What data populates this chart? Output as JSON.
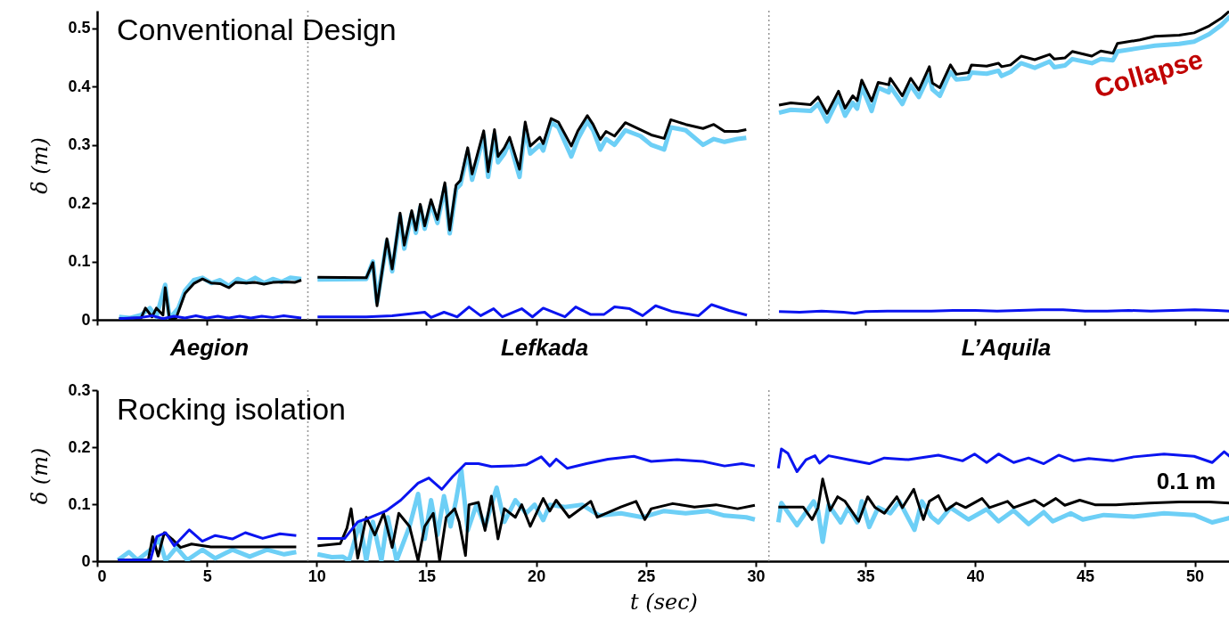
{
  "chart_data": [
    {
      "type": "line",
      "xlim": [
        0,
        51.6
      ],
      "ylim": [
        0,
        0.53
      ],
      "xticks": [
        0,
        5,
        10,
        15,
        20,
        25,
        30,
        35,
        40,
        45,
        50
      ],
      "yticks": [
        0,
        0.1,
        0.2,
        0.3,
        0.4,
        0.5
      ],
      "ylabel": "δ (m)",
      "tick_labels": "y",
      "line_style": "solid",
      "annotations": [
        "Conventional Design",
        "Aegion",
        "Lefkada",
        "L’Aquila",
        "Collapse"
      ],
      "ref_lines": [
        {
          "axis": "x",
          "value": 9.6,
          "color": "#999999",
          "line_style": "dotted"
        },
        {
          "axis": "x",
          "value": 30.6,
          "color": "#999999",
          "line_style": "dotted"
        }
      ],
      "series": [
        {
          "color": "#6dcff6",
          "x": [
            1,
            1.5,
            2,
            2.4,
            2.7,
            3.1,
            3.3,
            3.7,
            4.0,
            4.4,
            4.8,
            5.2,
            5.6,
            6.0,
            6.4,
            6.8,
            7.2,
            7.6,
            8,
            8.4,
            8.8,
            9.3,
            null,
            10.04,
            12.26,
            12.56,
            12.75,
            13.2,
            13.44,
            13.8,
            13.99,
            14.33,
            14.52,
            14.72,
            14.92,
            15.21,
            15.5,
            15.84,
            16.06,
            16.35,
            16.55,
            16.88,
            17.08,
            17.61,
            17.81,
            18.1,
            18.26,
            18.55,
            18.79,
            19.24,
            19.5,
            19.73,
            20.17,
            20.32,
            20.68,
            21.01,
            21.6,
            21.9,
            22.33,
            22.59,
            22.92,
            23.18,
            23.57,
            24.06,
            24.75,
            25.24,
            25.83,
            26.13,
            26.81,
            27.6,
            28.09,
            28.58,
            29.17,
            29.57,
            null,
            31.06,
            31.6,
            32.5,
            32.84,
            33.25,
            33.77,
            34.07,
            34.42,
            34.62,
            34.83,
            35.28,
            35.58,
            36.06,
            36.13,
            36.68,
            37.06,
            37.43,
            37.91,
            38.05,
            38.39,
            38.87,
            39.14,
            39.69,
            39.83,
            40.52,
            41.06,
            41.2,
            41.61,
            42.09,
            42.71,
            43.39,
            43.6,
            44.08,
            44.42,
            45.31,
            45.72,
            46.27,
            46.48,
            47.5,
            48.19,
            49.29,
            49.97,
            50.66,
            51.2,
            51.6
          ],
          "values": [
            0.005,
            0.003,
            0.008,
            0.02,
            0.005,
            0.06,
            0.002,
            0.02,
            0.05,
            0.068,
            0.072,
            0.063,
            0.068,
            0.058,
            0.07,
            0.064,
            0.072,
            0.063,
            0.07,
            0.065,
            0.072,
            0.07,
            null,
            0.069,
            0.07,
            0.1,
            0.03,
            0.135,
            0.083,
            0.178,
            0.122,
            0.182,
            0.149,
            0.193,
            0.156,
            0.2,
            0.166,
            0.228,
            0.148,
            0.224,
            0.232,
            0.288,
            0.24,
            0.316,
            0.245,
            0.318,
            0.27,
            0.285,
            0.305,
            0.245,
            0.33,
            0.285,
            0.3,
            0.29,
            0.338,
            0.33,
            0.28,
            0.31,
            0.34,
            0.325,
            0.292,
            0.31,
            0.3,
            0.325,
            0.315,
            0.3,
            0.292,
            0.33,
            0.325,
            0.3,
            0.31,
            0.305,
            0.31,
            0.312,
            null,
            0.355,
            0.36,
            0.358,
            0.37,
            0.34,
            0.38,
            0.35,
            0.372,
            0.362,
            0.4,
            0.358,
            0.398,
            0.39,
            0.4,
            0.37,
            0.402,
            0.382,
            0.42,
            0.395,
            0.384,
            0.425,
            0.412,
            0.414,
            0.424,
            0.422,
            0.427,
            0.418,
            0.425,
            0.44,
            0.432,
            0.443,
            0.433,
            0.436,
            0.447,
            0.44,
            0.447,
            0.445,
            0.46,
            0.466,
            0.47,
            0.473,
            0.477,
            0.49,
            0.505,
            0.52
          ]
        },
        {
          "color": "#000000",
          "x": [
            1,
            2,
            2.2,
            2.5,
            2.7,
            3.0,
            3.1,
            3.3,
            3.6,
            4.0,
            4.4,
            4.8,
            5.2,
            5.6,
            6.0,
            6.3,
            6.8,
            7.2,
            7.6,
            8.0,
            8.5,
            9.0,
            9.3,
            null,
            10.04,
            12.26,
            12.56,
            12.75,
            13.2,
            13.44,
            13.8,
            13.99,
            14.33,
            14.52,
            14.72,
            14.92,
            15.21,
            15.5,
            15.84,
            16.06,
            16.35,
            16.55,
            16.88,
            17.08,
            17.61,
            17.81,
            18.1,
            18.26,
            18.55,
            18.79,
            19.24,
            19.5,
            19.73,
            20.17,
            20.32,
            20.68,
            21.01,
            21.6,
            21.9,
            22.33,
            22.59,
            22.92,
            23.18,
            23.57,
            24.06,
            24.75,
            25.24,
            25.83,
            26.13,
            26.81,
            27.6,
            28.09,
            28.58,
            29.17,
            29.57,
            null,
            31.06,
            31.6,
            32.5,
            32.84,
            33.25,
            33.77,
            34.07,
            34.42,
            34.62,
            34.83,
            35.28,
            35.58,
            36.06,
            36.13,
            36.68,
            37.06,
            37.43,
            37.91,
            38.05,
            38.39,
            38.87,
            39.14,
            39.69,
            39.83,
            40.52,
            41.06,
            41.2,
            41.61,
            42.09,
            42.71,
            43.39,
            43.6,
            44.08,
            44.42,
            45.31,
            45.72,
            46.27,
            46.48,
            47.5,
            48.19,
            49.29,
            49.97,
            50.66,
            51.2,
            51.6
          ],
          "values": [
            0.002,
            0.003,
            0.02,
            0.005,
            0.02,
            0.008,
            0.055,
            0.0,
            0.003,
            0.045,
            0.062,
            0.07,
            0.063,
            0.062,
            0.055,
            0.064,
            0.063,
            0.064,
            0.061,
            0.064,
            0.065,
            0.064,
            0.068,
            null,
            0.073,
            0.072,
            0.098,
            0.024,
            0.139,
            0.087,
            0.183,
            0.128,
            0.187,
            0.154,
            0.198,
            0.161,
            0.206,
            0.172,
            0.235,
            0.154,
            0.231,
            0.239,
            0.295,
            0.25,
            0.324,
            0.254,
            0.326,
            0.28,
            0.295,
            0.313,
            0.258,
            0.339,
            0.298,
            0.313,
            0.302,
            0.345,
            0.339,
            0.298,
            0.324,
            0.35,
            0.335,
            0.309,
            0.323,
            0.315,
            0.338,
            0.326,
            0.317,
            0.311,
            0.343,
            0.335,
            0.328,
            0.335,
            0.323,
            0.323,
            0.326,
            null,
            0.368,
            0.372,
            0.369,
            0.382,
            0.354,
            0.392,
            0.363,
            0.384,
            0.376,
            0.411,
            0.375,
            0.407,
            0.403,
            0.414,
            0.384,
            0.414,
            0.394,
            0.434,
            0.406,
            0.398,
            0.437,
            0.421,
            0.424,
            0.437,
            0.435,
            0.44,
            0.434,
            0.437,
            0.452,
            0.446,
            0.455,
            0.447,
            0.449,
            0.46,
            0.452,
            0.461,
            0.457,
            0.474,
            0.48,
            0.486,
            0.488,
            0.492,
            0.504,
            0.517,
            0.53
          ]
        },
        {
          "color": "#0a14f0",
          "x": [
            1,
            2,
            2.5,
            3,
            3.5,
            4,
            4.5,
            5,
            5.5,
            6,
            6.5,
            7,
            7.5,
            8,
            8.5,
            9.3,
            null,
            10.04,
            12.26,
            13.44,
            14.92,
            15.21,
            15.8,
            16.4,
            16.94,
            17.47,
            18.06,
            18.46,
            19.34,
            19.83,
            20.32,
            21.31,
            21.8,
            22.49,
            23.08,
            23.57,
            24.26,
            24.85,
            25.44,
            26.22,
            27.4,
            27.99,
            28.78,
            29.6,
            null,
            31.06,
            32,
            33,
            34,
            34.5,
            35,
            36,
            37,
            38,
            39,
            40,
            41,
            42,
            43,
            44,
            45,
            46,
            47,
            48,
            49,
            50,
            51,
            51.6
          ],
          "values": [
            0.002,
            0.004,
            0.007,
            0.002,
            0.006,
            0.003,
            0.007,
            0.003,
            0.006,
            0.003,
            0.006,
            0.003,
            0.006,
            0.004,
            0.007,
            0.003,
            null,
            0.005,
            0.005,
            0.007,
            0.013,
            0.004,
            0.013,
            0.005,
            0.022,
            0.007,
            0.019,
            0.005,
            0.019,
            0.005,
            0.02,
            0.005,
            0.022,
            0.009,
            0.009,
            0.022,
            0.019,
            0.007,
            0.024,
            0.014,
            0.007,
            0.026,
            0.016,
            0.008,
            null,
            0.014,
            0.013,
            0.015,
            0.013,
            0.011,
            0.014,
            0.015,
            0.015,
            0.015,
            0.016,
            0.016,
            0.015,
            0.016,
            0.017,
            0.017,
            0.015,
            0.015,
            0.016,
            0.015,
            0.016,
            0.017,
            0.016,
            0.015
          ]
        }
      ]
    },
    {
      "type": "line",
      "xlim": [
        0,
        51.6
      ],
      "ylim": [
        0,
        0.3
      ],
      "xticks": [
        0,
        5,
        10,
        15,
        20,
        25,
        30,
        35,
        40,
        45,
        50
      ],
      "yticks": [
        0,
        0.1,
        0.2,
        0.3
      ],
      "xlabel": "t (sec)",
      "ylabel": "δ (m)",
      "line_style": "solid",
      "annotations": [
        "Rocking isolation",
        "0.1 m"
      ],
      "ref_lines": [
        {
          "axis": "x",
          "value": 9.6,
          "color": "#999999",
          "line_style": "dotted"
        },
        {
          "axis": "x",
          "value": 30.6,
          "color": "#999999",
          "line_style": "dotted"
        }
      ],
      "series": [
        {
          "color": "#6dcff6",
          "x": [
            0.95,
            1.45,
            1.84,
            2.43,
            2.82,
            3.12,
            3.61,
            4.1,
            4.79,
            5.38,
            6.16,
            6.95,
            7.74,
            8.52,
            9.07,
            null,
            10.04,
            10.69,
            11.18,
            11.47,
            11.97,
            12.26,
            12.56,
            12.95,
            13.24,
            13.64,
            14.23,
            14.62,
            14.92,
            15.21,
            15.5,
            15.8,
            16.1,
            16.35,
            16.59,
            16.88,
            17.28,
            17.67,
            18.2,
            18.55,
            19.05,
            19.54,
            19.93,
            20.32,
            20.62,
            21.31,
            22.09,
            22.88,
            23.86,
            24.85,
            25.83,
            26.81,
            27.8,
            28.58,
            29.57,
            29.96,
            null,
            31.03,
            31.17,
            31.88,
            32.64,
            32.84,
            33.05,
            33.32,
            33.87,
            34.21,
            34.62,
            34.83,
            35.17,
            35.58,
            36.13,
            36.54,
            37.23,
            37.57,
            38.0,
            38.32,
            38.87,
            39.69,
            40.52,
            41.06,
            41.75,
            42.43,
            43.12,
            43.53,
            44.35,
            44.9,
            45.86,
            47.23,
            48.6,
            49.97,
            50.79,
            51.59
          ],
          "values": [
            0.002,
            0.016,
            0.002,
            0.02,
            0.039,
            0.001,
            0.024,
            0.002,
            0.02,
            0.005,
            0.02,
            0.008,
            0.02,
            0.012,
            0.016,
            null,
            0.012,
            0.007,
            0.008,
            0.001,
            0.069,
            0.001,
            0.069,
            0.001,
            0.077,
            0.001,
            0.061,
            0.118,
            0.039,
            0.107,
            0.046,
            0.114,
            0.061,
            0.107,
            0.16,
            0.054,
            0.099,
            0.061,
            0.129,
            0.069,
            0.107,
            0.084,
            0.099,
            0.072,
            0.099,
            0.095,
            0.099,
            0.08,
            0.084,
            0.077,
            0.088,
            0.084,
            0.088,
            0.08,
            0.077,
            0.073,
            null,
            0.068,
            0.102,
            0.063,
            0.105,
            0.089,
            0.034,
            0.099,
            0.068,
            0.094,
            0.068,
            0.105,
            0.06,
            0.094,
            0.084,
            0.105,
            0.055,
            0.105,
            0.078,
            0.068,
            0.094,
            0.073,
            0.091,
            0.07,
            0.089,
            0.065,
            0.086,
            0.07,
            0.084,
            0.073,
            0.081,
            0.078,
            0.084,
            0.081,
            0.068,
            0.076
          ]
        },
        {
          "color": "#000000",
          "x": [
            0.95,
            2.33,
            2.53,
            2.78,
            3.06,
            3.41,
            3.8,
            4.3,
            5.18,
            6.56,
            7.93,
            9.07,
            null,
            10.04,
            11.08,
            11.38,
            11.57,
            11.87,
            12.26,
            12.65,
            13.05,
            13.44,
            13.74,
            14.23,
            14.62,
            14.92,
            15.31,
            15.6,
            15.9,
            16.29,
            16.49,
            16.78,
            16.94,
            17.37,
            17.67,
            17.96,
            18.26,
            18.55,
            19.05,
            19.34,
            19.73,
            20.32,
            20.62,
            20.91,
            21.5,
            22.49,
            22.78,
            23.86,
            24.55,
            24.95,
            25.24,
            26.22,
            27.21,
            28.19,
            29.17,
            29.96,
            null,
            31.03,
            32.16,
            32.57,
            32.84,
            33.05,
            33.39,
            33.73,
            34.07,
            34.69,
            35.1,
            35.44,
            35.86,
            36.43,
            36.68,
            37.2,
            37.64,
            37.91,
            38.32,
            38.67,
            39.14,
            39.56,
            40.31,
            40.65,
            41.47,
            41.75,
            42.71,
            43.12,
            43.67,
            44.08,
            44.76,
            45.45,
            46.41,
            47.92,
            49.29,
            50.66,
            51.59
          ],
          "values": [
            0.002,
            0.002,
            0.043,
            0.009,
            0.05,
            0.039,
            0.024,
            0.03,
            0.025,
            0.025,
            0.025,
            0.025,
            null,
            0.027,
            0.031,
            0.058,
            0.092,
            0.005,
            0.077,
            0.046,
            0.084,
            0.024,
            0.084,
            0.061,
            0.001,
            0.061,
            0.084,
            0.001,
            0.077,
            0.092,
            0.069,
            0.01,
            0.099,
            0.103,
            0.054,
            0.114,
            0.039,
            0.092,
            0.077,
            0.099,
            0.061,
            0.11,
            0.088,
            0.107,
            0.077,
            0.105,
            0.077,
            0.095,
            0.105,
            0.073,
            0.092,
            0.101,
            0.095,
            0.099,
            0.092,
            0.098,
            null,
            0.095,
            0.095,
            0.073,
            0.094,
            0.144,
            0.089,
            0.113,
            0.105,
            0.07,
            0.113,
            0.094,
            0.084,
            0.113,
            0.094,
            0.126,
            0.073,
            0.105,
            0.115,
            0.089,
            0.102,
            0.094,
            0.11,
            0.094,
            0.105,
            0.094,
            0.107,
            0.097,
            0.11,
            0.098,
            0.107,
            0.099,
            0.099,
            0.102,
            0.104,
            0.104,
            0.102
          ]
        },
        {
          "color": "#0a14f0",
          "x": [
            0.95,
            2.43,
            2.72,
            3.12,
            3.51,
            4.2,
            4.79,
            5.38,
            6.16,
            6.75,
            7.54,
            8.33,
            9.07,
            null,
            10.04,
            11.28,
            11.87,
            12.46,
            13.15,
            13.83,
            14.62,
            15.11,
            15.7,
            16.19,
            16.78,
            17.37,
            17.96,
            18.95,
            19.54,
            20.23,
            20.62,
            20.91,
            21.41,
            22.29,
            23.27,
            24.45,
            25.24,
            26.42,
            27.6,
            28.58,
            29.37,
            29.96,
            null,
            31.03,
            31.17,
            31.47,
            31.88,
            32.29,
            32.7,
            32.91,
            33.32,
            34.21,
            35.17,
            35.86,
            36.95,
            38.32,
            39.42,
            39.97,
            40.52,
            41.06,
            41.75,
            42.43,
            43.12,
            43.8,
            44.49,
            45.17,
            46.27,
            47.23,
            48.6,
            49.97,
            50.79,
            51.34,
            51.59
          ],
          "values": [
            0.002,
            0.002,
            0.043,
            0.05,
            0.027,
            0.055,
            0.035,
            0.045,
            0.039,
            0.05,
            0.04,
            0.048,
            0.045,
            null,
            0.04,
            0.04,
            0.069,
            0.077,
            0.088,
            0.107,
            0.137,
            0.146,
            0.126,
            0.148,
            0.171,
            0.171,
            0.166,
            0.167,
            0.169,
            0.183,
            0.167,
            0.179,
            0.163,
            0.171,
            0.179,
            0.184,
            0.175,
            0.178,
            0.175,
            0.167,
            0.171,
            0.167,
            null,
            0.163,
            0.197,
            0.189,
            0.157,
            0.178,
            0.185,
            0.172,
            0.185,
            0.178,
            0.171,
            0.181,
            0.178,
            0.186,
            0.176,
            0.188,
            0.173,
            0.188,
            0.173,
            0.181,
            0.171,
            0.186,
            0.176,
            0.18,
            0.176,
            0.183,
            0.188,
            0.184,
            0.173,
            0.192,
            0.184
          ]
        }
      ]
    }
  ]
}
